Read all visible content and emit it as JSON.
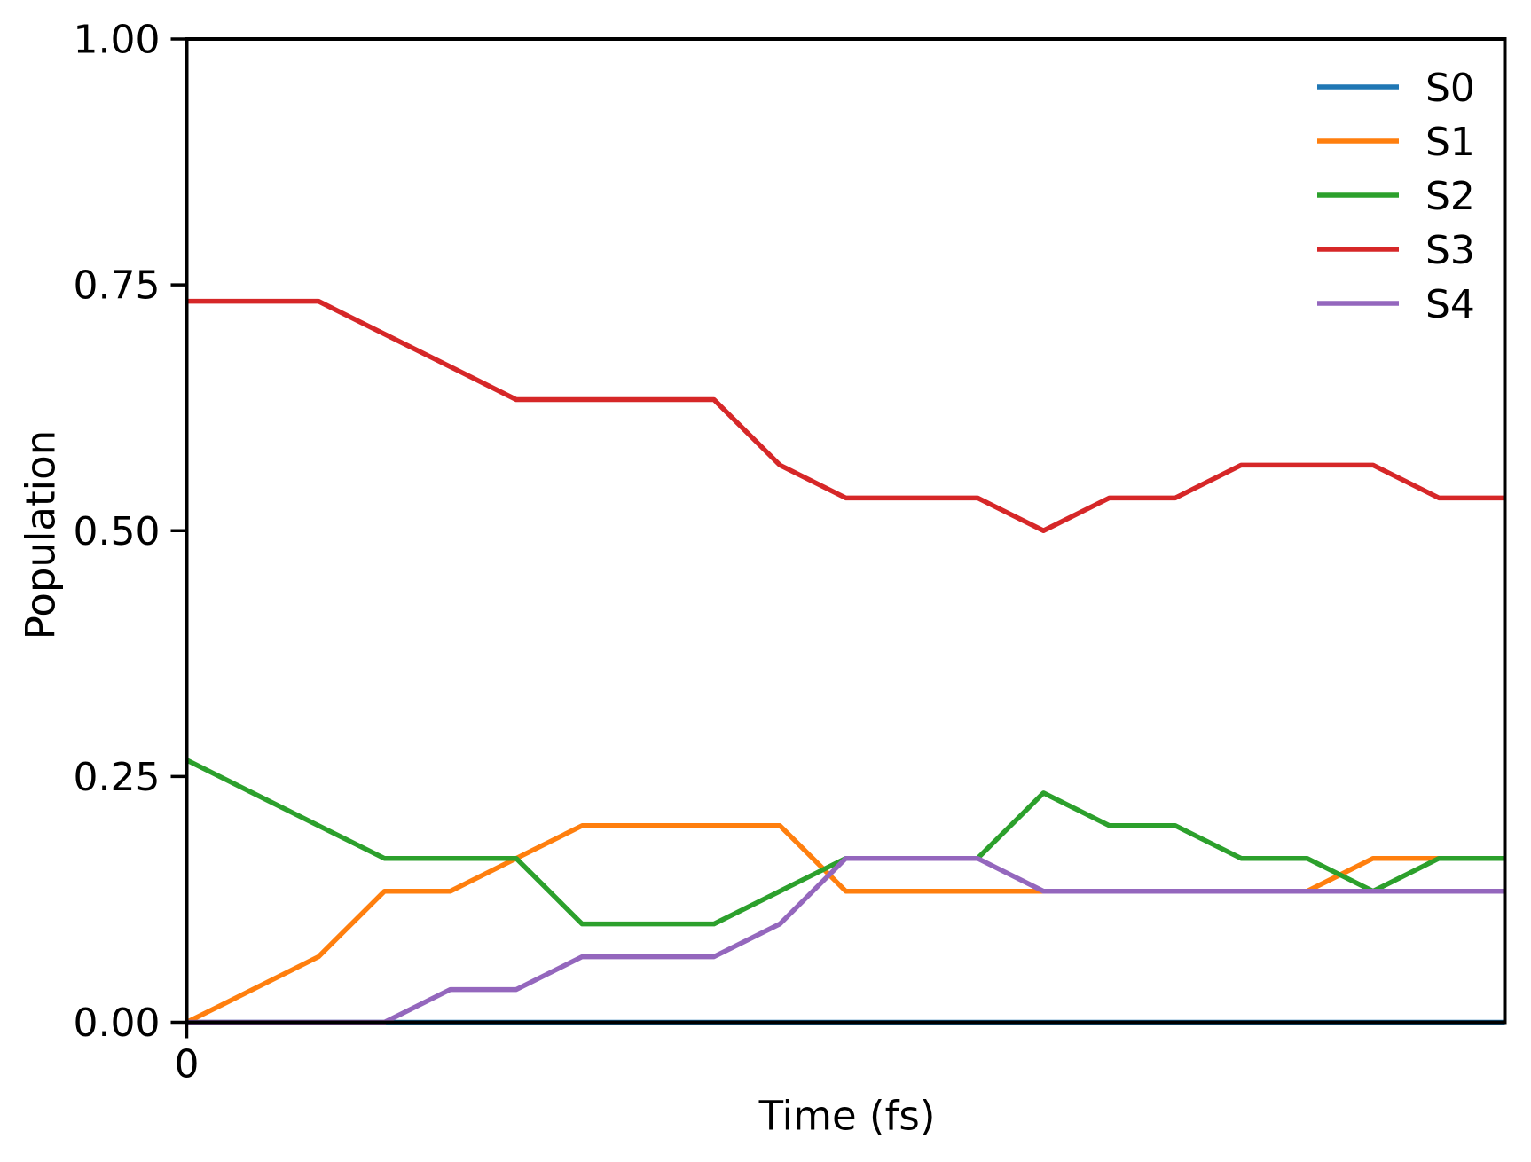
{
  "chart_data": {
    "type": "line",
    "title": "",
    "xlabel": "Time (fs)",
    "ylabel": "Population",
    "grid": false,
    "background": "#ffffff",
    "axis_color": "#000000",
    "xlim": [
      0,
      20
    ],
    "ylim": [
      0.0,
      1.0
    ],
    "x": [
      0,
      1,
      2,
      3,
      4,
      5,
      6,
      7,
      8,
      9,
      10,
      11,
      12,
      13,
      14,
      15,
      16,
      17,
      18,
      19,
      20
    ],
    "xticks": {
      "values": [
        0
      ],
      "labels": [
        "0"
      ]
    },
    "yticks": {
      "values": [
        0.0,
        0.25,
        0.5,
        0.75,
        1.0
      ],
      "labels": [
        "0.00",
        "0.25",
        "0.50",
        "0.75",
        "1.00"
      ]
    },
    "legend": {
      "position": "upper right",
      "entries": [
        "S0",
        "S1",
        "S2",
        "S3",
        "S4"
      ]
    },
    "series": [
      {
        "name": "S0",
        "color": "#1f77b4",
        "values": [
          0,
          0,
          0,
          0,
          0,
          0,
          0,
          0,
          0,
          0,
          0,
          0,
          0,
          0,
          0,
          0,
          0,
          0,
          0,
          0,
          0
        ]
      },
      {
        "name": "S1",
        "color": "#ff7f0e",
        "values": [
          0,
          0.0333,
          0.0667,
          0.1333,
          0.1333,
          0.1667,
          0.2,
          0.2,
          0.2,
          0.2,
          0.1333,
          0.1333,
          0.1333,
          0.1333,
          0.1333,
          0.1333,
          0.1333,
          0.1333,
          0.1667,
          0.1667,
          0.1667
        ]
      },
      {
        "name": "S2",
        "color": "#2ca02c",
        "values": [
          0.2667,
          0.2333,
          0.2,
          0.1667,
          0.1667,
          0.1667,
          0.1,
          0.1,
          0.1,
          0.1333,
          0.1667,
          0.1667,
          0.1667,
          0.2333,
          0.2,
          0.2,
          0.1667,
          0.1667,
          0.1333,
          0.1667,
          0.1667
        ]
      },
      {
        "name": "S3",
        "color": "#d62728",
        "values": [
          0.7333,
          0.7333,
          0.7333,
          0.7,
          0.6667,
          0.6333,
          0.6333,
          0.6333,
          0.6333,
          0.5667,
          0.5333,
          0.5333,
          0.5333,
          0.5,
          0.5333,
          0.5333,
          0.5667,
          0.5667,
          0.5667,
          0.5333,
          0.5333
        ]
      },
      {
        "name": "S4",
        "color": "#9467bd",
        "values": [
          0,
          0,
          0,
          0,
          0.0333,
          0.0333,
          0.0667,
          0.0667,
          0.0667,
          0.1,
          0.1667,
          0.1667,
          0.1667,
          0.1333,
          0.1333,
          0.1333,
          0.1333,
          0.1333,
          0.1333,
          0.1333,
          0.1333
        ]
      }
    ]
  }
}
